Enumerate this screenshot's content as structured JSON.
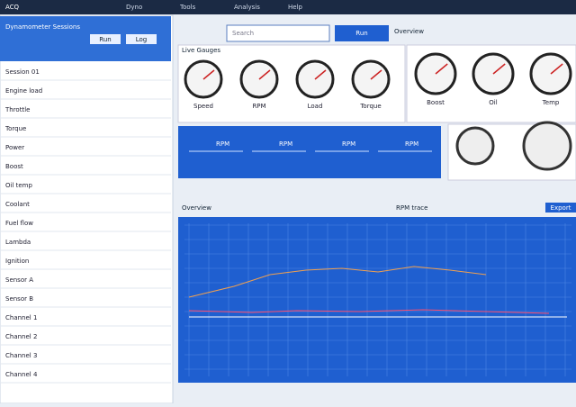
{
  "topbar": {
    "app": "ACQ",
    "items": [
      "Dyno",
      "Tools",
      "Analysis",
      "Help"
    ]
  },
  "sidebar": {
    "title": "Dynamometer Sessions",
    "tabs": [
      "Run",
      "Log"
    ],
    "rows": [
      "Session 01",
      "Engine load",
      "Throttle",
      "Torque",
      "Power",
      "Boost",
      "Oil temp",
      "Coolant",
      "Fuel flow",
      "Lambda",
      "Ignition",
      "Sensor A",
      "Sensor B",
      "Channel 1",
      "Channel 2",
      "Channel 3",
      "Channel 4"
    ]
  },
  "search": {
    "placeholder": "Search",
    "button": "Run"
  },
  "gauges": {
    "title": "Live Gauges",
    "labels": [
      "Speed",
      "RPM",
      "Load",
      "Torque"
    ],
    "right_title": "Overview",
    "right_labels": [
      "Boost",
      "Oil",
      "Temp"
    ]
  },
  "strip": {
    "labels": [
      "RPM",
      "RPM",
      "RPM",
      "RPM"
    ]
  },
  "chart": {
    "title": "Overview",
    "legend": "RPM trace",
    "button": "Export"
  }
}
